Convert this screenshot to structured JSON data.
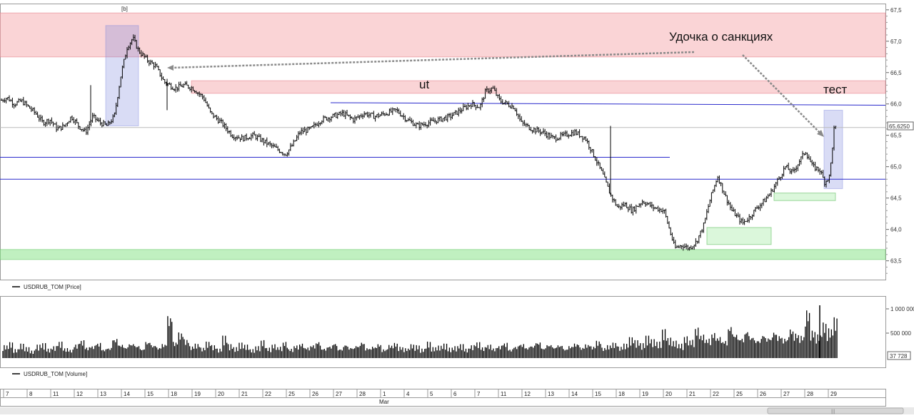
{
  "chart_data": {
    "type": "ohlc",
    "title": "",
    "series_price": {
      "name": "USDRUB_TOM [Price]",
      "color": "#000000"
    },
    "series_volume": {
      "name": "USDRUB_TOM [Volume]",
      "color": "#000000"
    },
    "price_axis": {
      "ticks": [
        "67,5",
        "67,0",
        "66,5",
        "66,0",
        "65,5",
        "65,0",
        "64,5",
        "64,0",
        "63,5"
      ],
      "ylim": [
        63.2,
        67.6
      ]
    },
    "volume_axis": {
      "ticks": [
        "1 000 000",
        "500 000"
      ],
      "current_label": "37 728"
    },
    "current_price_label": "65,6250",
    "period_marker": "[b]",
    "date_labels": [
      "7",
      "8",
      "11",
      "12",
      "13",
      "14",
      "15",
      "18",
      "19",
      "20",
      "21",
      "22",
      "25",
      "26",
      "27",
      "28",
      "1",
      "4",
      "5",
      "6",
      "7",
      "11",
      "12",
      "13",
      "14",
      "15",
      "18",
      "19",
      "20",
      "21",
      "22",
      "25",
      "26",
      "27",
      "28",
      "29"
    ],
    "month_label": "Mar",
    "annotations": {
      "main": "Удочка о санкциях",
      "ut": "ut",
      "test": "тест"
    },
    "zones": {
      "resistance_top": [
        66.75,
        67.45
      ],
      "resistance_mid": [
        66.17,
        66.37
      ],
      "support_bottom": [
        63.52,
        63.68
      ],
      "support_small_1": [
        63.76,
        64.03
      ],
      "support_small_2": [
        64.46,
        64.58
      ]
    },
    "levels": [
      65.98,
      65.15,
      64.8
    ],
    "price_path": [
      [
        0,
        66.05
      ],
      [
        10,
        66.1
      ],
      [
        20,
        66.0
      ],
      [
        30,
        66.05
      ],
      [
        40,
        65.95
      ],
      [
        50,
        65.85
      ],
      [
        60,
        65.7
      ],
      [
        70,
        65.75
      ],
      [
        80,
        65.6
      ],
      [
        90,
        65.65
      ],
      [
        100,
        65.8
      ],
      [
        110,
        65.65
      ],
      [
        120,
        65.55
      ],
      [
        130,
        65.8
      ],
      [
        140,
        65.7
      ],
      [
        150,
        65.65
      ],
      [
        160,
        65.8
      ],
      [
        170,
        66.5
      ],
      [
        178,
        66.9
      ],
      [
        186,
        67.05
      ],
      [
        194,
        66.85
      ],
      [
        206,
        66.7
      ],
      [
        218,
        66.6
      ],
      [
        230,
        66.35
      ],
      [
        245,
        66.25
      ],
      [
        258,
        66.3
      ],
      [
        270,
        66.25
      ],
      [
        285,
        66.1
      ],
      [
        295,
        65.85
      ],
      [
        310,
        65.7
      ],
      [
        325,
        65.5
      ],
      [
        340,
        65.45
      ],
      [
        355,
        65.5
      ],
      [
        370,
        65.4
      ],
      [
        385,
        65.3
      ],
      [
        400,
        65.2
      ],
      [
        410,
        65.35
      ],
      [
        420,
        65.55
      ],
      [
        435,
        65.6
      ],
      [
        450,
        65.75
      ],
      [
        465,
        65.8
      ],
      [
        480,
        65.85
      ],
      [
        495,
        65.75
      ],
      [
        510,
        65.85
      ],
      [
        525,
        65.8
      ],
      [
        540,
        65.85
      ],
      [
        555,
        65.9
      ],
      [
        570,
        65.75
      ],
      [
        585,
        65.65
      ],
      [
        600,
        65.7
      ],
      [
        615,
        65.75
      ],
      [
        630,
        65.8
      ],
      [
        645,
        65.9
      ],
      [
        660,
        66.0
      ],
      [
        672,
        65.95
      ],
      [
        680,
        66.2
      ],
      [
        690,
        66.25
      ],
      [
        700,
        66.05
      ],
      [
        710,
        66.0
      ],
      [
        720,
        65.95
      ],
      [
        730,
        65.7
      ],
      [
        745,
        65.6
      ],
      [
        760,
        65.55
      ],
      [
        775,
        65.45
      ],
      [
        790,
        65.5
      ],
      [
        805,
        65.55
      ],
      [
        820,
        65.45
      ],
      [
        835,
        65.1
      ],
      [
        845,
        64.85
      ],
      [
        855,
        64.55
      ],
      [
        865,
        64.35
      ],
      [
        875,
        64.4
      ],
      [
        885,
        64.3
      ],
      [
        900,
        64.45
      ],
      [
        915,
        64.35
      ],
      [
        930,
        64.3
      ],
      [
        945,
        63.7
      ],
      [
        955,
        63.75
      ],
      [
        965,
        63.7
      ],
      [
        975,
        63.8
      ],
      [
        985,
        64.05
      ],
      [
        995,
        64.5
      ],
      [
        1005,
        64.85
      ],
      [
        1015,
        64.55
      ],
      [
        1025,
        64.3
      ],
      [
        1040,
        64.1
      ],
      [
        1050,
        64.2
      ],
      [
        1060,
        64.35
      ],
      [
        1070,
        64.45
      ],
      [
        1080,
        64.6
      ],
      [
        1090,
        64.8
      ],
      [
        1100,
        65.0
      ],
      [
        1110,
        64.9
      ],
      [
        1120,
        65.1
      ],
      [
        1128,
        65.25
      ],
      [
        1138,
        65.0
      ],
      [
        1148,
        64.95
      ],
      [
        1155,
        64.75
      ],
      [
        1162,
        64.85
      ],
      [
        1168,
        65.6
      ],
      [
        1172,
        65.62
      ]
    ],
    "volume_bars": [
      0.26,
      0.32,
      0.18,
      0.29,
      0.22,
      0.15,
      0.27,
      0.3,
      0.19,
      0.24,
      0.33,
      0.2,
      0.17,
      0.28,
      0.36,
      0.22,
      0.25,
      0.31,
      0.18,
      0.21,
      0.4,
      0.28,
      0.23,
      0.3,
      0.26,
      0.19,
      0.34,
      0.27,
      0.22,
      0.29,
      0.86,
      0.33,
      0.52,
      0.38,
      0.24,
      0.29,
      0.21,
      0.33,
      0.26,
      0.19,
      0.45,
      0.28,
      0.22,
      0.31,
      0.27,
      0.18,
      0.24,
      0.36,
      0.21,
      0.28,
      0.23,
      0.33,
      0.19,
      0.26,
      0.3,
      0.22,
      0.27,
      0.34,
      0.2,
      0.25,
      0.31,
      0.19,
      0.28,
      0.22,
      0.26,
      0.33,
      0.21,
      0.24,
      0.29,
      0.18,
      0.27,
      0.31,
      0.23,
      0.2,
      0.28,
      0.26,
      0.19,
      0.33,
      0.22,
      0.25,
      0.29,
      0.21,
      0.24,
      0.28,
      0.19,
      0.26,
      0.32,
      0.22,
      0.27,
      0.2,
      0.25,
      0.31,
      0.18,
      0.24,
      0.29,
      0.22,
      0.26,
      0.33,
      0.21,
      0.28,
      0.23,
      0.27,
      0.19,
      0.25,
      0.3,
      0.22,
      0.28,
      0.24,
      0.35,
      0.21,
      0.26,
      0.31,
      0.23,
      0.29,
      0.42,
      0.36,
      0.3,
      0.45,
      0.38,
      0.33,
      0.58,
      0.41,
      0.35,
      0.29,
      0.44,
      0.37,
      0.62,
      0.48,
      0.4,
      0.52,
      0.44,
      0.36,
      0.66,
      0.5,
      0.42,
      0.57,
      0.45,
      0.38,
      0.49,
      0.43,
      0.55,
      0.47,
      0.41,
      0.6,
      0.51,
      0.46,
      0.98,
      0.56,
      0.48,
      0.72,
      0.6,
      0.82
    ]
  },
  "legend": {
    "price": "USDRUB_TOM [Price]",
    "volume": "USDRUB_TOM [Volume]"
  }
}
